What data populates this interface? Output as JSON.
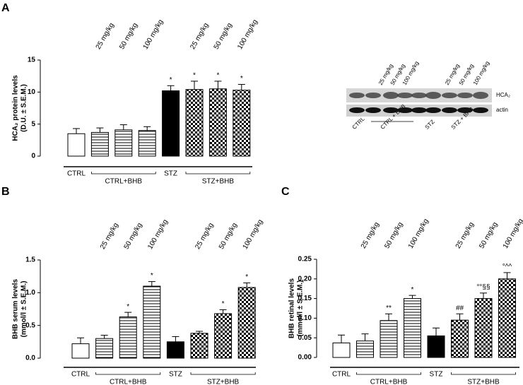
{
  "chart_data": [
    {
      "type": "bar",
      "panel": "A",
      "ylabel": [
        "HCA₂ protein levels",
        "(D.U. ± S.E.M.)"
      ],
      "categories": [
        null,
        "25 mg/kg",
        "50 mg/kg",
        "100 mg/kg",
        null,
        "25 mg/kg",
        "50 mg/kg",
        "100 mg/kg"
      ],
      "groups": [
        "CTRL",
        "CTRL+BHB",
        "STZ",
        "STZ+BHB"
      ],
      "values": [
        3.5,
        3.7,
        4.1,
        4.0,
        10.2,
        10.4,
        10.5,
        10.3
      ],
      "errors": [
        0.8,
        0.7,
        0.8,
        0.6,
        0.8,
        1.3,
        1.2,
        0.9
      ],
      "annotations": [
        null,
        null,
        null,
        null,
        "*",
        "*",
        "*",
        "*"
      ],
      "fills": [
        "white",
        "stripes",
        "stripes",
        "stripes",
        "black",
        "checker",
        "checker",
        "checker"
      ],
      "ylim": [
        0,
        15
      ],
      "yticks": [
        0,
        5,
        10,
        15
      ]
    },
    {
      "type": "bar",
      "panel": "B",
      "ylabel": [
        "BHB serum levels",
        "(mmol/l ± S.E.M.)"
      ],
      "categories": [
        null,
        "25 mg/kg",
        "50 mg/kg",
        "100 mg/kg",
        null,
        "25 mg/kg",
        "50 mg/kg",
        "100 mg/kg"
      ],
      "groups": [
        "CTRL",
        "CTRL+BHB",
        "STZ",
        "STZ+BHB"
      ],
      "values": [
        0.22,
        0.3,
        0.63,
        1.1,
        0.25,
        0.38,
        0.68,
        1.08
      ],
      "errors": [
        0.09,
        0.05,
        0.07,
        0.07,
        0.08,
        0.03,
        0.06,
        0.07
      ],
      "annotations": [
        null,
        null,
        "*",
        "*",
        null,
        null,
        "*",
        "*"
      ],
      "fills": [
        "white",
        "stripes",
        "stripes",
        "stripes",
        "black",
        "checker",
        "checker",
        "checker"
      ],
      "ylim": [
        0,
        1.5
      ],
      "yticks": [
        {
          "value": 0,
          "label": "0.0"
        },
        0.5,
        {
          "value": 1,
          "label": "1.0"
        },
        1.5
      ]
    },
    {
      "type": "bar",
      "panel": "C",
      "ylabel": [
        "BHB retinal levels",
        "(mmol/l ± S.E.M.)"
      ],
      "categories": [
        null,
        "25 mg/kg",
        "50 mg/kg",
        "100 mg/kg",
        null,
        "25 mg/kg",
        "50 mg/kg",
        "100 mg/kg"
      ],
      "groups": [
        "CTRL",
        "CTRL+BHB",
        "STZ",
        "STZ+BHB"
      ],
      "values": [
        0.037,
        0.042,
        0.094,
        0.15,
        0.055,
        0.095,
        0.15,
        0.2
      ],
      "errors": [
        0.02,
        0.018,
        0.017,
        0.008,
        0.02,
        0.016,
        0.014,
        0.016
      ],
      "annotations": [
        null,
        null,
        "**",
        "*",
        null,
        "##",
        "°°§§",
        "°^^"
      ],
      "fills": [
        "white",
        "stripes",
        "stripes",
        "stripes",
        "black",
        "checker",
        "checker",
        "checker"
      ],
      "ylim": [
        0,
        0.25
      ],
      "yticks": [
        {
          "value": 0,
          "label": "0.00"
        },
        {
          "value": 0.05,
          "label": "0.05"
        },
        {
          "value": 0.1,
          "label": "0.10"
        },
        {
          "value": 0.15,
          "label": "0.15"
        },
        {
          "value": 0.2,
          "label": "0.20"
        },
        {
          "value": 0.25,
          "label": "0.25"
        }
      ]
    }
  ],
  "blot": {
    "lanes": [
      "25 mg/kg",
      "50 mg/kg",
      "100 mg/kg",
      "25 mg/kg",
      "50 mg/kg",
      "100 mg/kg"
    ],
    "bands": [
      "HCA₂",
      "actin"
    ],
    "groups": [
      "CTRL",
      "CTRL + BHB",
      "STZ",
      "STZ + BHB"
    ]
  }
}
